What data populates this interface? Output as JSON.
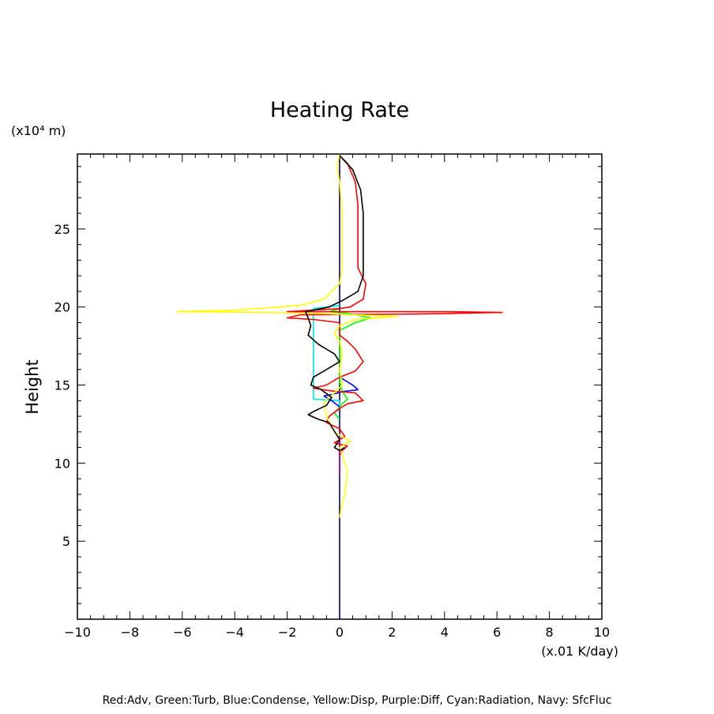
{
  "chart_data": {
    "type": "line",
    "title": "Heating Rate",
    "xlabel": "(x.01 K/day)",
    "ylabel": "Height",
    "y_unit_label": "(x10⁴ m)",
    "xlim": [
      -10,
      10
    ],
    "ylim": [
      0,
      29.8
    ],
    "xticks": [
      -10,
      -8,
      -6,
      -4,
      -2,
      0,
      2,
      4,
      6,
      8,
      10
    ],
    "xtick_labels": [
      "−10",
      "−8",
      "−6",
      "−4",
      "−2",
      "0",
      "2",
      "4",
      "6",
      "8",
      "10"
    ],
    "yticks": [
      5,
      10,
      15,
      20,
      25
    ],
    "ytick_labels": [
      "5",
      "10",
      "15",
      "20",
      "25"
    ],
    "grid": false,
    "legend_text": "Red:Adv, Green:Turb, Blue:Condense, Yellow:Disp, Purple:Diff, Cyan:Radiation, Navy: SfcFluc",
    "series": [
      {
        "name": "SfcFluc",
        "color": "#000080",
        "points": [
          [
            0,
            0
          ],
          [
            0,
            29.8
          ]
        ]
      },
      {
        "name": "Radiation",
        "color": "#00e5e5",
        "points": [
          [
            0,
            20.1
          ],
          [
            -1.0,
            19.9
          ],
          [
            -1.0,
            18.0
          ],
          [
            -1.0,
            16.0
          ],
          [
            -1.0,
            14.1
          ],
          [
            0,
            14.0
          ],
          [
            0,
            13.5
          ]
        ]
      },
      {
        "name": "Turb",
        "color": "#00ff00",
        "points": [
          [
            0,
            12.8
          ],
          [
            -0.2,
            13.2
          ],
          [
            0.1,
            13.8
          ],
          [
            0.3,
            14.1
          ],
          [
            0.1,
            14.6
          ],
          [
            0,
            15.2
          ],
          [
            0,
            18.5
          ],
          [
            0.6,
            19.0
          ],
          [
            1.2,
            19.3
          ],
          [
            0.3,
            19.6
          ],
          [
            -0.4,
            19.7
          ],
          [
            0,
            19.9
          ]
        ]
      },
      {
        "name": "Condense",
        "color": "#0000ff",
        "points": [
          [
            0,
            15.5
          ],
          [
            0.5,
            15.0
          ],
          [
            0.7,
            14.7
          ],
          [
            0.2,
            14.6
          ],
          [
            -0.3,
            14.4
          ],
          [
            -0.6,
            14.3
          ],
          [
            -0.3,
            14.0
          ],
          [
            0,
            13.6
          ]
        ]
      },
      {
        "name": "Diff",
        "color": "#9900cc",
        "points": [
          [
            0,
            9.2
          ],
          [
            0,
            12.0
          ]
        ]
      },
      {
        "name": "Adv",
        "color": "#ff0000",
        "points": [
          [
            0,
            29.7
          ],
          [
            0.3,
            29.2
          ],
          [
            0.6,
            28.0
          ],
          [
            0.7,
            26.5
          ],
          [
            0.7,
            24.0
          ],
          [
            0.7,
            22.5
          ],
          [
            1.0,
            21.5
          ],
          [
            0.9,
            20.5
          ],
          [
            0.4,
            20.0
          ],
          [
            0,
            19.9
          ],
          [
            -2,
            19.7
          ],
          [
            4,
            19.7
          ],
          [
            6.2,
            19.65
          ],
          [
            3,
            19.55
          ],
          [
            -1.5,
            19.5
          ],
          [
            -2.0,
            19.3
          ],
          [
            -1.0,
            19.2
          ],
          [
            0,
            19.0
          ],
          [
            0,
            18.2
          ],
          [
            0.3,
            17.8
          ],
          [
            0.6,
            17.3
          ],
          [
            0.9,
            16.5
          ],
          [
            0.6,
            15.9
          ],
          [
            0,
            15.5
          ],
          [
            -0.5,
            15.0
          ],
          [
            -1.0,
            14.8
          ],
          [
            -0.2,
            14.6
          ],
          [
            0.6,
            14.5
          ],
          [
            0.9,
            14.0
          ],
          [
            0.3,
            13.8
          ],
          [
            0,
            13.5
          ],
          [
            -0.4,
            13.0
          ],
          [
            -0.5,
            12.6
          ],
          [
            0,
            12.2
          ],
          [
            0.2,
            11.7
          ],
          [
            -0.2,
            11.3
          ],
          [
            0.3,
            11.1
          ],
          [
            0.1,
            10.8
          ],
          [
            0,
            10.5
          ]
        ]
      },
      {
        "name": "Disp",
        "color": "#ffff00",
        "points": [
          [
            0,
            29.8
          ],
          [
            -0.1,
            29.0
          ],
          [
            0,
            28.0
          ],
          [
            0.1,
            26.0
          ],
          [
            0.1,
            24.0
          ],
          [
            0.1,
            22.5
          ],
          [
            0,
            21.5
          ],
          [
            -0.6,
            20.5
          ],
          [
            -1.5,
            20.1
          ],
          [
            -4,
            19.8
          ],
          [
            -6.2,
            19.7
          ],
          [
            -3,
            19.65
          ],
          [
            -1,
            19.6
          ],
          [
            0.5,
            19.5
          ],
          [
            2.2,
            19.4
          ],
          [
            0.6,
            19.2
          ],
          [
            0,
            18.8
          ],
          [
            -0.2,
            18.3
          ],
          [
            0,
            17.8
          ],
          [
            0.1,
            17.0
          ],
          [
            0,
            16.0
          ],
          [
            0.1,
            15.0
          ],
          [
            -0.2,
            14.5
          ],
          [
            -0.6,
            13.9
          ],
          [
            -0.5,
            13.0
          ],
          [
            -0.2,
            12.0
          ],
          [
            0.4,
            11.4
          ],
          [
            0,
            11.0
          ],
          [
            0.3,
            9.5
          ],
          [
            0.2,
            8.0
          ],
          [
            0.1,
            7.5
          ],
          [
            0,
            6.5
          ]
        ]
      },
      {
        "name": "",
        "color": "#000000",
        "points": [
          [
            0,
            29.7
          ],
          [
            0.5,
            28.8
          ],
          [
            0.8,
            27.5
          ],
          [
            0.9,
            26.0
          ],
          [
            0.9,
            24.0
          ],
          [
            0.9,
            22.0
          ],
          [
            0.7,
            21.0
          ],
          [
            0.2,
            20.5
          ],
          [
            -0.4,
            20.0
          ],
          [
            -1.0,
            19.8
          ],
          [
            -1.3,
            19.7
          ],
          [
            -1.2,
            19.3
          ],
          [
            -1.1,
            18.8
          ],
          [
            -1.2,
            18.2
          ],
          [
            -0.8,
            17.6
          ],
          [
            -0.2,
            17.0
          ],
          [
            0,
            16.5
          ],
          [
            -0.5,
            16.0
          ],
          [
            -1.0,
            15.5
          ],
          [
            -1.1,
            15.0
          ],
          [
            -0.7,
            14.7
          ],
          [
            -0.3,
            14.2
          ],
          [
            -0.5,
            13.7
          ],
          [
            -1.0,
            13.3
          ],
          [
            -1.2,
            13.1
          ],
          [
            -0.8,
            12.8
          ],
          [
            -0.4,
            12.6
          ],
          [
            0,
            11.5
          ],
          [
            -0.2,
            11.0
          ],
          [
            0,
            10.8
          ],
          [
            0.2,
            11.0
          ]
        ]
      }
    ]
  }
}
